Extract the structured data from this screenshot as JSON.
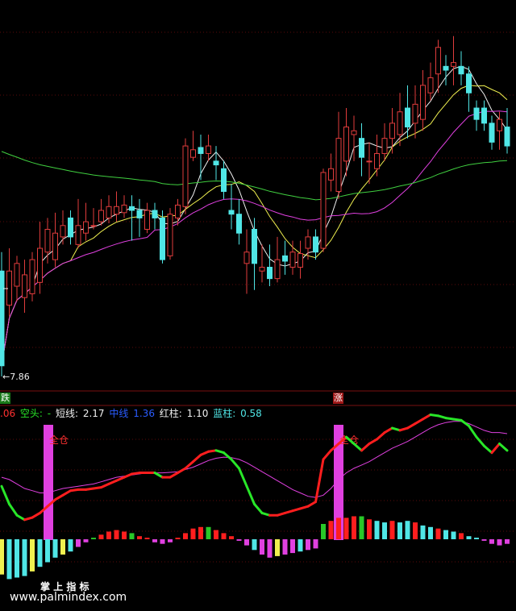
{
  "header": {
    "lead_value": ".06",
    "kongtou_label": "空头:",
    "kongtou_value": "-",
    "duanxian_label": "短线:",
    "duanxian_value": "2.17",
    "zhongxian_label": "中线",
    "zhongxian_value": "1.36",
    "hongzhu_label": "红柱:",
    "hongzhu_value": "1.10",
    "lanzhu_label": "蓝柱:",
    "lanzhu_value": "0.58"
  },
  "tags": {
    "fall": "跌",
    "rise": "涨"
  },
  "annotations": {
    "low_price": "←7.86",
    "fullpos_1": "全仓",
    "fullpos_2": "全仓"
  },
  "watermark": {
    "title": "掌 上 指 标",
    "url": "www.palmindex.com"
  },
  "colors": {
    "background": "#000000",
    "up_candle": "#e03c3c",
    "down_candle": "#50e6e6",
    "ma_short": "#f0f0f0",
    "ma_mid": "#f0f050",
    "ma_long": "#e040e0",
    "ma_base": "#40d040",
    "line_up": "#ff1e1e",
    "line_down": "#28e628",
    "signal_line": "#e040e0",
    "hist_red": "#ff1e1e",
    "hist_cyan": "#50e6e6",
    "hist_magenta": "#e040e0",
    "hist_yellow": "#f0f050",
    "hist_green": "#28c828",
    "signal_bar": "#e040e0"
  },
  "chart_data": [
    {
      "type": "candlestick",
      "title": "",
      "y_range": [
        7.7,
        12.4
      ],
      "low_marker": 7.86,
      "candles": [
        [
          9.25,
          8.0,
          9.5,
          7.86
        ],
        [
          8.8,
          9.25,
          9.55,
          8.65
        ],
        [
          9.05,
          9.35,
          9.45,
          8.85
        ],
        [
          8.9,
          9.2,
          9.4,
          8.7
        ],
        [
          8.95,
          9.4,
          9.5,
          8.85
        ],
        [
          9.1,
          9.55,
          9.9,
          8.95
        ],
        [
          9.5,
          9.8,
          9.95,
          9.35
        ],
        [
          9.4,
          9.75,
          10.02,
          9.3
        ],
        [
          9.7,
          9.85,
          10.05,
          9.6
        ],
        [
          9.95,
          9.7,
          10.05,
          9.6
        ],
        [
          9.6,
          9.85,
          10.2,
          9.55
        ],
        [
          9.75,
          9.9,
          10.15,
          9.65
        ],
        [
          9.85,
          9.85,
          10.08,
          9.8
        ],
        [
          9.9,
          10.05,
          10.2,
          9.85
        ],
        [
          9.95,
          10.1,
          10.25,
          9.88
        ],
        [
          10.0,
          10.1,
          10.3,
          9.9
        ],
        [
          10.02,
          10.12,
          10.25,
          9.95
        ],
        [
          10.1,
          10.05,
          10.25,
          9.65
        ],
        [
          10.05,
          9.95,
          10.2,
          9.7
        ],
        [
          9.8,
          10.05,
          10.15,
          9.75
        ],
        [
          10.05,
          9.95,
          10.15,
          9.8
        ],
        [
          9.95,
          9.4,
          10.05,
          9.35
        ],
        [
          9.45,
          10.0,
          10.08,
          9.4
        ],
        [
          9.95,
          10.12,
          10.2,
          9.85
        ],
        [
          10.1,
          10.9,
          11.0,
          10.0
        ],
        [
          10.75,
          10.85,
          11.1,
          10.7
        ],
        [
          10.88,
          10.8,
          11.05,
          10.45
        ],
        [
          10.8,
          10.9,
          11.05,
          10.7
        ],
        [
          10.7,
          10.65,
          10.9,
          10.45
        ],
        [
          10.6,
          10.3,
          10.7,
          10.2
        ],
        [
          10.05,
          10.0,
          10.4,
          9.8
        ],
        [
          10.0,
          9.75,
          10.2,
          9.6
        ],
        [
          9.35,
          9.5,
          9.8,
          8.95
        ],
        [
          9.8,
          9.35,
          9.95,
          9.0
        ],
        [
          9.25,
          9.3,
          9.6,
          9.1
        ],
        [
          9.3,
          9.15,
          9.6,
          9.05
        ],
        [
          9.15,
          9.4,
          9.7,
          9.1
        ],
        [
          9.45,
          9.38,
          9.65,
          9.2
        ],
        [
          9.3,
          9.5,
          9.65,
          9.2
        ],
        [
          9.3,
          9.48,
          9.65,
          9.15
        ],
        [
          9.55,
          9.7,
          9.8,
          9.4
        ],
        [
          9.7,
          9.5,
          9.8,
          9.4
        ],
        [
          9.55,
          10.55,
          10.6,
          9.5
        ],
        [
          10.45,
          10.6,
          10.8,
          10.3
        ],
        [
          10.3,
          11.0,
          11.35,
          10.2
        ],
        [
          10.7,
          11.15,
          11.4,
          10.5
        ],
        [
          11.05,
          11.1,
          11.3,
          10.7
        ],
        [
          11.0,
          10.75,
          11.2,
          10.5
        ],
        [
          10.7,
          10.7,
          10.95,
          10.4
        ],
        [
          10.6,
          10.8,
          11.05,
          10.5
        ],
        [
          10.8,
          11.0,
          11.2,
          10.7
        ],
        [
          11.0,
          11.2,
          11.4,
          10.8
        ],
        [
          11.05,
          11.35,
          11.6,
          10.9
        ],
        [
          11.4,
          11.15,
          11.7,
          11.0
        ],
        [
          11.2,
          11.45,
          11.7,
          11.0
        ],
        [
          11.25,
          11.7,
          11.9,
          11.1
        ],
        [
          11.6,
          11.8,
          12.0,
          11.5
        ],
        [
          11.85,
          12.2,
          12.3,
          11.6
        ],
        [
          11.95,
          11.9,
          12.1,
          11.7
        ],
        [
          11.95,
          12.0,
          12.35,
          11.7
        ],
        [
          11.95,
          11.85,
          12.15,
          11.7
        ],
        [
          11.85,
          11.6,
          11.95,
          11.35
        ],
        [
          11.4,
          11.25,
          11.5,
          11.1
        ],
        [
          11.4,
          11.2,
          11.5,
          11.1
        ],
        [
          11.2,
          10.95,
          11.3,
          10.85
        ],
        [
          11.1,
          11.25,
          11.35,
          10.85
        ],
        [
          11.15,
          10.9,
          11.4,
          10.8
        ]
      ]
    },
    {
      "type": "line",
      "title": "",
      "y_range": [
        -3.5,
        4.0
      ],
      "series": [
        {
          "values": [
            1.0,
            0.2,
            -0.3,
            -0.5,
            -0.4,
            -0.2,
            0.1,
            0.4,
            0.6,
            0.8,
            0.85,
            0.85,
            0.9,
            0.95,
            1.1,
            1.25,
            1.4,
            1.55,
            1.6,
            1.6,
            1.6,
            1.4,
            1.4,
            1.6,
            1.8,
            2.1,
            2.4,
            2.55,
            2.6,
            2.5,
            2.2,
            1.8,
            1.0,
            0.2,
            -0.2,
            -0.3,
            -0.3,
            -0.2,
            -0.1,
            0.0,
            0.1,
            0.3,
            2.2,
            2.6,
            2.9,
            3.2,
            2.9,
            2.6,
            2.9,
            3.1,
            3.4,
            3.6,
            3.5,
            3.6,
            3.8,
            4.0,
            4.2,
            4.15,
            4.05,
            4.0,
            3.95,
            3.7,
            3.2,
            2.8,
            2.5,
            2.9,
            2.6
          ]
        },
        {
          "values": [
            1.4,
            1.3,
            1.1,
            0.9,
            0.8,
            0.7,
            0.7,
            0.8,
            0.9,
            0.95,
            1.0,
            1.05,
            1.1,
            1.2,
            1.3,
            1.4,
            1.45,
            1.5,
            1.55,
            1.6,
            1.6,
            1.6,
            1.62,
            1.65,
            1.75,
            1.85,
            2.0,
            2.15,
            2.25,
            2.3,
            2.28,
            2.2,
            2.05,
            1.85,
            1.65,
            1.45,
            1.25,
            1.05,
            0.85,
            0.7,
            0.55,
            0.5,
            0.6,
            0.9,
            1.3,
            1.6,
            1.8,
            1.95,
            2.1,
            2.3,
            2.5,
            2.7,
            2.85,
            3.0,
            3.2,
            3.4,
            3.6,
            3.75,
            3.85,
            3.9,
            3.9,
            3.8,
            3.65,
            3.5,
            3.4,
            3.4,
            3.35
          ]
        }
      ],
      "bars": [
        -2.3,
        -2.6,
        -2.5,
        -2.4,
        -2.1,
        -1.8,
        -1.5,
        -1.2,
        -1.0,
        -0.8,
        -0.5,
        -0.2,
        0.1,
        0.3,
        0.5,
        0.6,
        0.5,
        0.4,
        0.2,
        0.1,
        -0.2,
        -0.3,
        -0.2,
        0.1,
        0.4,
        0.7,
        0.8,
        0.8,
        0.6,
        0.4,
        0.2,
        -0.1,
        -0.4,
        -0.7,
        -1.0,
        -1.2,
        -1.1,
        -1.0,
        -0.9,
        -0.8,
        -0.7,
        -0.6,
        1.0,
        1.2,
        1.4,
        1.4,
        1.5,
        1.5,
        1.3,
        1.2,
        1.1,
        1.2,
        1.1,
        1.2,
        1.1,
        0.9,
        0.8,
        0.7,
        0.6,
        0.5,
        0.4,
        0.2,
        0.1,
        -0.1,
        -0.3,
        -0.4,
        -0.3
      ],
      "signal_bars_at": [
        2,
        42
      ]
    }
  ]
}
